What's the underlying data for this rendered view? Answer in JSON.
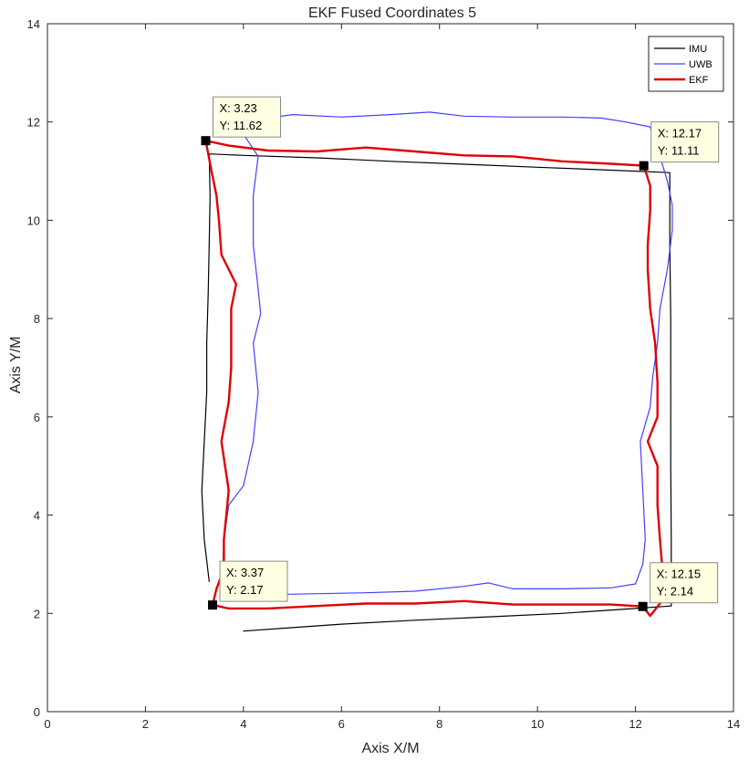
{
  "chart_data": {
    "type": "line",
    "title": "EKF Fused Coordinates 5",
    "xlabel": "Axis X/M",
    "ylabel": "Axis Y/M",
    "xlim": [
      0,
      14
    ],
    "ylim": [
      0,
      14
    ],
    "xticks": [
      0,
      2,
      4,
      6,
      8,
      10,
      12,
      14
    ],
    "yticks": [
      0,
      2,
      4,
      6,
      8,
      10,
      12,
      14
    ],
    "grid": false,
    "legend_position": "top-right",
    "series": [
      {
        "name": "IMU",
        "color": "#000000",
        "points": [
          [
            3.3,
            2.65
          ],
          [
            3.2,
            3.5
          ],
          [
            3.15,
            4.5
          ],
          [
            3.2,
            5.5
          ],
          [
            3.25,
            6.5
          ],
          [
            3.25,
            7.5
          ],
          [
            3.28,
            8.5
          ],
          [
            3.3,
            9.5
          ],
          [
            3.32,
            10.5
          ],
          [
            3.3,
            11.35
          ],
          [
            4.0,
            11.32
          ],
          [
            5.5,
            11.27
          ],
          [
            7.0,
            11.2
          ],
          [
            8.5,
            11.14
          ],
          [
            10.0,
            11.08
          ],
          [
            11.5,
            11.02
          ],
          [
            12.7,
            10.97
          ],
          [
            12.7,
            9.5
          ],
          [
            12.72,
            8.0
          ],
          [
            12.72,
            6.5
          ],
          [
            12.72,
            5.0
          ],
          [
            12.73,
            3.5
          ],
          [
            12.73,
            2.15
          ],
          [
            12.0,
            2.1
          ],
          [
            10.5,
            2.0
          ],
          [
            9.0,
            1.93
          ],
          [
            7.5,
            1.86
          ],
          [
            6.0,
            1.78
          ],
          [
            5.0,
            1.71
          ],
          [
            4.0,
            1.64
          ]
        ]
      },
      {
        "name": "UWB",
        "color": "#4040ff",
        "points": [
          [
            3.57,
            2.6
          ],
          [
            3.6,
            3.5
          ],
          [
            3.7,
            4.2
          ],
          [
            4.0,
            4.6
          ],
          [
            4.2,
            5.5
          ],
          [
            4.3,
            6.5
          ],
          [
            4.2,
            7.5
          ],
          [
            4.35,
            8.1
          ],
          [
            4.3,
            8.6
          ],
          [
            4.2,
            9.5
          ],
          [
            4.2,
            10.5
          ],
          [
            4.3,
            11.3
          ],
          [
            4.0,
            11.75
          ],
          [
            3.7,
            11.78
          ],
          [
            4.3,
            12.05
          ],
          [
            5.0,
            12.15
          ],
          [
            6.0,
            12.1
          ],
          [
            7.0,
            12.15
          ],
          [
            7.8,
            12.2
          ],
          [
            8.5,
            12.12
          ],
          [
            9.5,
            12.1
          ],
          [
            10.5,
            12.1
          ],
          [
            11.3,
            12.08
          ],
          [
            11.8,
            12.0
          ],
          [
            12.3,
            11.9
          ],
          [
            12.5,
            11.3
          ],
          [
            12.65,
            10.8
          ],
          [
            12.75,
            10.3
          ],
          [
            12.75,
            9.8
          ],
          [
            12.65,
            9.0
          ],
          [
            12.5,
            8.2
          ],
          [
            12.45,
            7.5
          ],
          [
            12.35,
            6.8
          ],
          [
            12.3,
            6.2
          ],
          [
            12.1,
            5.5
          ],
          [
            12.15,
            4.5
          ],
          [
            12.2,
            3.5
          ],
          [
            12.15,
            3.0
          ],
          [
            12.0,
            2.6
          ],
          [
            11.5,
            2.52
          ],
          [
            10.5,
            2.5
          ],
          [
            9.5,
            2.5
          ],
          [
            9.0,
            2.62
          ],
          [
            8.5,
            2.55
          ],
          [
            7.5,
            2.45
          ],
          [
            6.5,
            2.42
          ],
          [
            5.5,
            2.4
          ],
          [
            4.5,
            2.38
          ],
          [
            3.75,
            2.4
          ],
          [
            3.6,
            2.6
          ]
        ]
      },
      {
        "name": "EKF",
        "color": "#e00000",
        "points": [
          [
            3.37,
            2.17
          ],
          [
            3.45,
            2.5
          ],
          [
            3.6,
            2.9
          ],
          [
            3.6,
            3.5
          ],
          [
            3.7,
            4.5
          ],
          [
            3.55,
            5.5
          ],
          [
            3.7,
            6.3
          ],
          [
            3.75,
            7.0
          ],
          [
            3.75,
            8.2
          ],
          [
            3.85,
            8.7
          ],
          [
            3.55,
            9.3
          ],
          [
            3.5,
            10.0
          ],
          [
            3.45,
            10.5
          ],
          [
            3.35,
            11.0
          ],
          [
            3.23,
            11.62
          ],
          [
            3.7,
            11.52
          ],
          [
            4.5,
            11.42
          ],
          [
            5.5,
            11.4
          ],
          [
            6.5,
            11.48
          ],
          [
            7.5,
            11.4
          ],
          [
            8.5,
            11.32
          ],
          [
            9.5,
            11.3
          ],
          [
            10.5,
            11.2
          ],
          [
            11.5,
            11.15
          ],
          [
            12.17,
            11.11
          ],
          [
            12.3,
            10.7
          ],
          [
            12.3,
            10.2
          ],
          [
            12.25,
            9.5
          ],
          [
            12.25,
            9.0
          ],
          [
            12.3,
            8.2
          ],
          [
            12.4,
            7.5
          ],
          [
            12.45,
            6.7
          ],
          [
            12.45,
            6.0
          ],
          [
            12.25,
            5.5
          ],
          [
            12.45,
            5.0
          ],
          [
            12.45,
            4.2
          ],
          [
            12.5,
            3.5
          ],
          [
            12.55,
            2.9
          ],
          [
            12.65,
            2.5
          ],
          [
            12.5,
            2.2
          ],
          [
            12.3,
            1.95
          ],
          [
            12.15,
            2.14
          ],
          [
            11.5,
            2.18
          ],
          [
            10.5,
            2.18
          ],
          [
            9.5,
            2.18
          ],
          [
            8.5,
            2.25
          ],
          [
            7.5,
            2.2
          ],
          [
            6.5,
            2.2
          ],
          [
            5.5,
            2.15
          ],
          [
            4.5,
            2.1
          ],
          [
            3.7,
            2.1
          ],
          [
            3.37,
            2.17
          ]
        ]
      }
    ],
    "annotations": [
      {
        "x": 3.23,
        "y": 11.62,
        "lines": [
          "X: 3.23",
          "Y: 11.62"
        ],
        "placement": "upper-right"
      },
      {
        "x": 12.17,
        "y": 11.11,
        "lines": [
          "X: 12.17",
          "Y: 11.11"
        ],
        "placement": "upper-right"
      },
      {
        "x": 3.37,
        "y": 2.17,
        "lines": [
          "X: 3.37",
          "Y: 2.17"
        ],
        "placement": "upper-right"
      },
      {
        "x": 12.15,
        "y": 2.14,
        "lines": [
          "X: 12.15",
          "Y: 2.14"
        ],
        "placement": "upper-right"
      }
    ]
  }
}
